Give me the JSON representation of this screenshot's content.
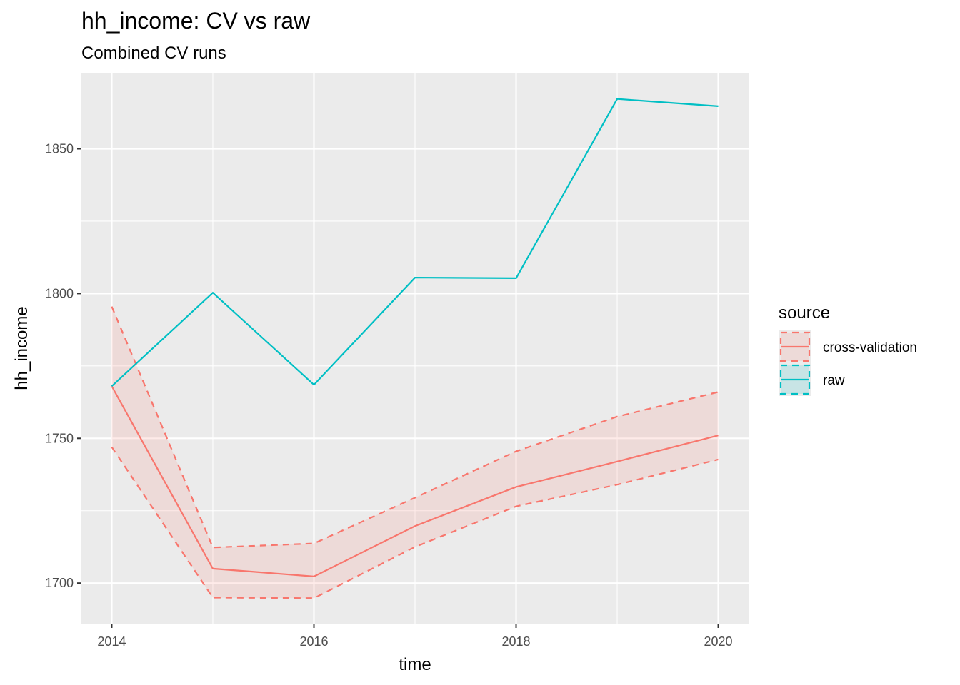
{
  "chart_data": {
    "type": "line",
    "title": "hh_income: CV vs raw",
    "subtitle": "Combined CV runs",
    "xlabel": "time",
    "ylabel": "hh_income",
    "xlim": [
      2013.7,
      2020.3
    ],
    "ylim": [
      1686.0,
      1876.0
    ],
    "x_ticks": [
      2014,
      2016,
      2018,
      2020
    ],
    "x_tick_labels": [
      "2014",
      "2016",
      "2018",
      "2020"
    ],
    "x_minor": [
      2015,
      2017,
      2019
    ],
    "y_ticks": [
      1700,
      1750,
      1800,
      1850
    ],
    "y_tick_labels": [
      "1700",
      "1750",
      "1800",
      "1850"
    ],
    "y_minor": [
      1725,
      1775,
      1825
    ],
    "grid": true,
    "legend": {
      "title": "source",
      "position": "right"
    },
    "series": [
      {
        "name": "cross-validation",
        "color": "#F8766D",
        "x": [
          2014,
          2015,
          2016,
          2017,
          2018,
          2019,
          2020
        ],
        "values": [
          1768.0,
          1705.0,
          1702.3,
          1719.7,
          1733.2,
          1742.0,
          1751.0
        ],
        "lower": [
          1747.0,
          1695.0,
          1694.8,
          1712.5,
          1726.5,
          1734.0,
          1742.7
        ],
        "upper": [
          1795.5,
          1712.3,
          1713.7,
          1729.5,
          1745.5,
          1757.5,
          1766.0
        ]
      },
      {
        "name": "raw",
        "color": "#00BFC4",
        "x": [
          2014,
          2015,
          2016,
          2017,
          2018,
          2019,
          2020
        ],
        "values": [
          1768.0,
          1800.3,
          1768.5,
          1805.5,
          1805.3,
          1867.2,
          1864.7
        ]
      }
    ]
  }
}
